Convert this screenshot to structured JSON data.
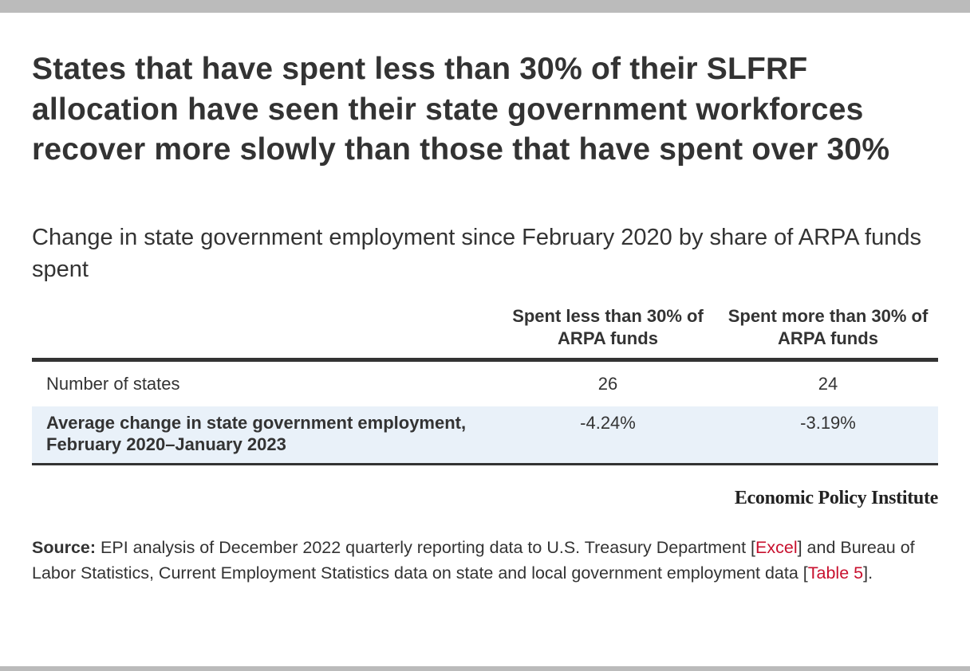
{
  "title": "States that have spent less than 30% of their SLFRF allocation have seen their state government workforces recover more slowly than those that have spent over 30%",
  "subtitle": "Change in state government employment since February 2020 by share of ARPA funds spent",
  "table": {
    "columns": [
      "",
      "Spent less than 30% of ARPA funds",
      "Spent more than 30% of ARPA funds"
    ],
    "rows": [
      {
        "label": "Number of states",
        "less": "26",
        "more": "24"
      },
      {
        "label": "Average change in state government employment, February 2020–January 2023",
        "less": "-4.24%",
        "more": "-3.19%"
      }
    ]
  },
  "attribution": "Economic Policy Institute",
  "source": {
    "label": "Source:",
    "text_1": " EPI analysis of December 2022 quarterly reporting data to U.S. Treasury Department [",
    "link_1": "Excel",
    "text_2": "] and Bureau of Labor Statistics, Current Employment Statistics data on state and local government employment data [",
    "link_2": "Table 5",
    "text_3": "]."
  },
  "colors": {
    "text": "#333333",
    "link": "#c8102e",
    "highlight_row": "#e9f1f9",
    "frame_bar": "#bbbbbb"
  }
}
